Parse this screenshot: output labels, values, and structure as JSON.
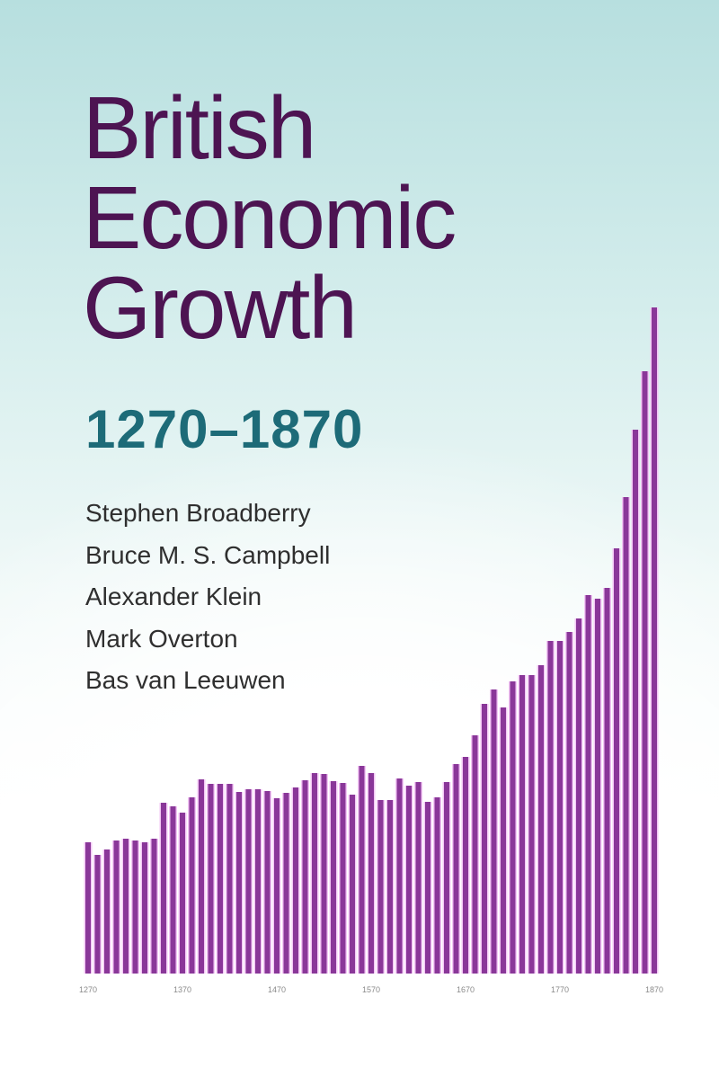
{
  "cover": {
    "title_lines": [
      "British",
      "Economic",
      "Growth"
    ],
    "years": "1270–1870",
    "authors": [
      "Stephen Broadberry",
      "Bruce M. S. Campbell",
      "Alexander Klein",
      "Mark Overton",
      "Bas van Leeuwen"
    ],
    "colors": {
      "title": "#4d1452",
      "years": "#1d6b78",
      "bars": "#8a3799"
    }
  },
  "chart_data": {
    "type": "bar",
    "title": "",
    "xlabel": "",
    "ylabel": "",
    "grid": false,
    "x_tick_labels": [
      "1270",
      "1370",
      "1470",
      "1570",
      "1670",
      "1770",
      "1870"
    ],
    "categories": [
      1270,
      1280,
      1290,
      1300,
      1310,
      1320,
      1330,
      1340,
      1350,
      1360,
      1370,
      1380,
      1390,
      1400,
      1410,
      1420,
      1430,
      1440,
      1450,
      1460,
      1470,
      1480,
      1490,
      1500,
      1510,
      1520,
      1530,
      1540,
      1550,
      1560,
      1570,
      1580,
      1590,
      1600,
      1610,
      1620,
      1630,
      1640,
      1650,
      1660,
      1670,
      1680,
      1690,
      1700,
      1710,
      1720,
      1730,
      1740,
      1750,
      1760,
      1770,
      1780,
      1790,
      1800,
      1810,
      1820,
      1830,
      1840,
      1850,
      1860,
      1870
    ],
    "values": [
      146,
      132,
      138,
      148,
      150,
      148,
      146,
      150,
      190,
      186,
      179,
      196,
      216,
      211,
      211,
      211,
      202,
      205,
      205,
      203,
      195,
      201,
      207,
      215,
      223,
      222,
      214,
      212,
      199,
      231,
      223,
      193,
      193,
      217,
      209,
      213,
      191,
      196,
      213,
      233,
      241,
      265,
      300,
      316,
      296,
      325,
      332,
      332,
      343,
      370,
      370,
      380,
      395,
      421,
      417,
      429,
      473,
      530,
      605,
      670,
      741
    ],
    "ylim": [
      0,
      741
    ]
  }
}
